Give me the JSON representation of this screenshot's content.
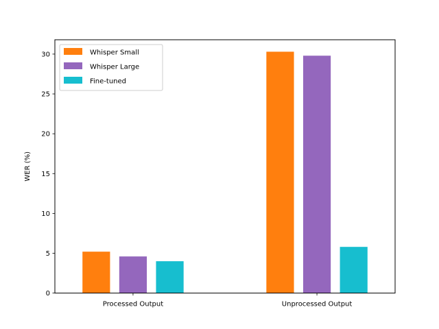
{
  "chart_data": {
    "type": "bar",
    "title": "",
    "xlabel": "",
    "ylabel": "WER (%)",
    "categories": [
      "Processed Output",
      "Unprocessed Output"
    ],
    "series": [
      {
        "name": "Whisper Small",
        "values": [
          5.2,
          30.3
        ],
        "color": "#ff7f0e"
      },
      {
        "name": "Whisper Large",
        "values": [
          4.6,
          29.8
        ],
        "color": "#9467bd"
      },
      {
        "name": "Fine-tuned",
        "values": [
          4.0,
          5.8
        ],
        "color": "#17becf"
      }
    ],
    "ylim": [
      0,
      31.8
    ],
    "yticks": [
      0,
      5,
      10,
      15,
      20,
      25,
      30
    ],
    "grid": false,
    "legend_position": "top-left"
  }
}
